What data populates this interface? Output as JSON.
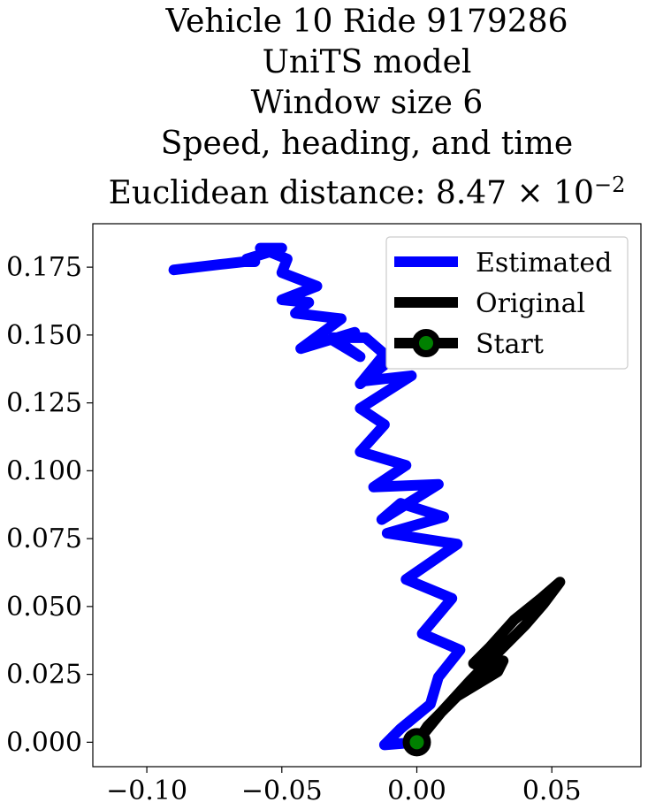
{
  "chart": {
    "title_lines": [
      "Vehicle 10 Ride 9179286",
      "UniTS model",
      "Window size 6",
      "Speed, heading, and time"
    ],
    "distance_label": "Euclidean distance: 8.47",
    "distance_exponent_base": "× 10",
    "distance_exponent": "−2"
  },
  "chart_data": {
    "type": "line",
    "xlim": [
      -0.12,
      0.083
    ],
    "ylim": [
      -0.009,
      0.191
    ],
    "xticks": [
      -0.1,
      -0.05,
      0.0,
      0.05
    ],
    "xtick_labels": [
      "−0.10",
      "−0.05",
      "0.00",
      "0.05"
    ],
    "yticks": [
      0.0,
      0.025,
      0.05,
      0.075,
      0.1,
      0.125,
      0.15,
      0.175
    ],
    "ytick_labels": [
      "0.000",
      "0.025",
      "0.050",
      "0.075",
      "0.100",
      "0.125",
      "0.150",
      "0.175"
    ],
    "grid": false,
    "legend_position": "top-right",
    "legend": [
      "Estimated",
      "Original",
      "Start"
    ],
    "series": [
      {
        "name": "Estimated",
        "color": "#0000ff",
        "x": [
          0.0,
          -0.012,
          -0.006,
          0.005,
          0.008,
          0.016,
          0.002,
          0.013,
          -0.004,
          0.015,
          -0.011,
          0.01,
          -0.006,
          -0.013,
          0.008,
          -0.016,
          -0.004,
          -0.021,
          -0.012,
          -0.021,
          -0.002,
          -0.02,
          -0.012,
          -0.021,
          -0.012,
          -0.019,
          -0.031,
          -0.021,
          -0.031,
          -0.023,
          -0.043,
          -0.028,
          -0.045,
          -0.04,
          -0.05,
          -0.037,
          -0.05,
          -0.048,
          -0.058,
          -0.05,
          -0.063,
          -0.06,
          -0.064,
          -0.073,
          -0.09
        ],
        "y": [
          0.0,
          -0.001,
          0.005,
          0.014,
          0.024,
          0.034,
          0.04,
          0.053,
          0.06,
          0.073,
          0.077,
          0.083,
          0.088,
          0.082,
          0.095,
          0.094,
          0.102,
          0.107,
          0.117,
          0.123,
          0.135,
          0.133,
          0.139,
          0.132,
          0.143,
          0.149,
          0.149,
          0.142,
          0.148,
          0.151,
          0.145,
          0.156,
          0.158,
          0.162,
          0.163,
          0.168,
          0.173,
          0.178,
          0.182,
          0.182,
          0.178,
          0.177,
          0.177,
          0.176,
          0.174
        ]
      },
      {
        "name": "Original",
        "color": "#000000",
        "x": [
          0.0,
          0.009,
          0.02,
          0.031,
          0.04,
          0.047,
          0.053,
          0.046,
          0.036,
          0.027,
          0.021,
          0.025,
          0.032,
          0.03,
          0.015,
          0.004,
          0.0
        ],
        "y": [
          0.0,
          0.011,
          0.023,
          0.034,
          0.043,
          0.051,
          0.059,
          0.053,
          0.045,
          0.035,
          0.029,
          0.027,
          0.03,
          0.026,
          0.017,
          0.006,
          0.0
        ]
      }
    ],
    "start_point": {
      "x": 0.0,
      "y": 0.0,
      "marker_edge_color": "#000000",
      "marker_face_color": "#008000"
    }
  }
}
